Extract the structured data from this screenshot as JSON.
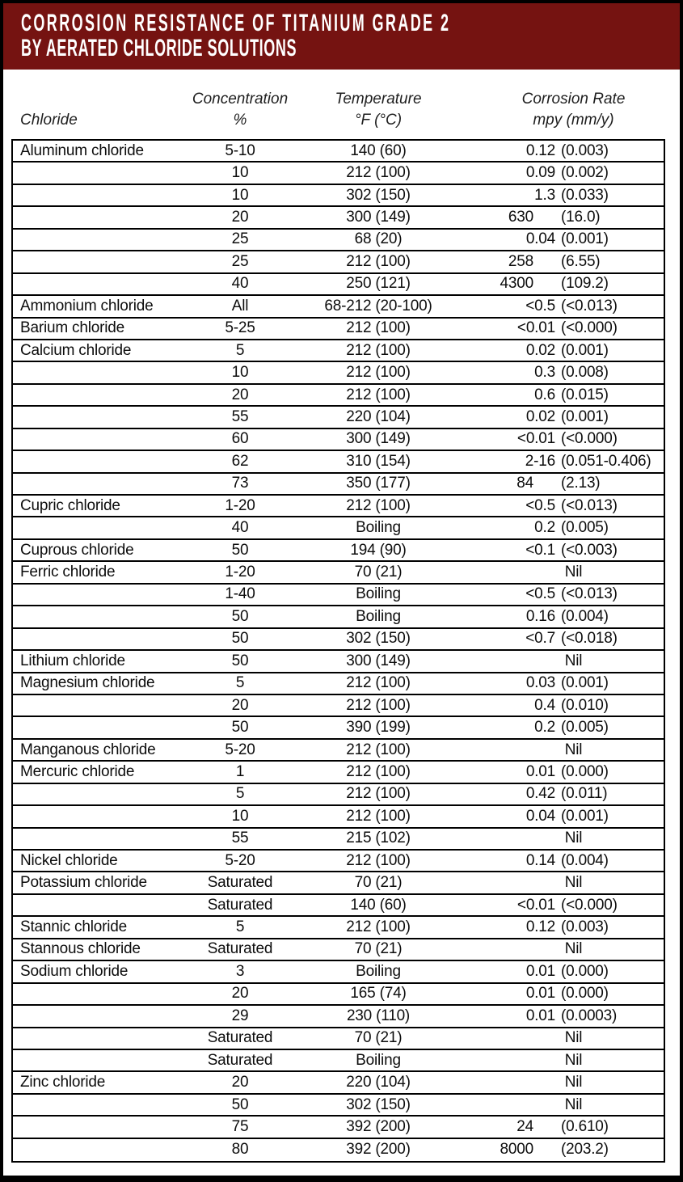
{
  "title": {
    "line1": "CORROSION RESISTANCE OF TITANIUM GRADE 2",
    "line2": "BY AERATED CHLORIDE SOLUTIONS"
  },
  "colors": {
    "banner_background": "#751311",
    "banner_text": "#ffffff",
    "table_border": "#000000",
    "body_text": "#0d0d0d"
  },
  "columns": {
    "chloride": {
      "line1": "",
      "line2": "Chloride"
    },
    "concentration": {
      "line1": "Concentration",
      "line2": "%"
    },
    "temperature": {
      "line1": "Temperature",
      "line2": "°F (°C)"
    },
    "corrosion": {
      "line1": "Corrosion Rate",
      "line2": "mpy (mm/y)"
    }
  },
  "rows": [
    {
      "chloride": "Aluminum chloride",
      "conc": "5-10",
      "temp": "140 (60)",
      "mpy": "0.12",
      "mmy": "(0.003)"
    },
    {
      "chloride": "",
      "conc": "10",
      "temp": "212 (100)",
      "mpy": "0.09",
      "mmy": "(0.002)"
    },
    {
      "chloride": "",
      "conc": "10",
      "temp": "302 (150)",
      "mpy": "1.3",
      "mmy": "(0.033)"
    },
    {
      "chloride": "",
      "conc": "20",
      "temp": "300 (149)",
      "mpy": "630",
      "mmy": "(16.0)"
    },
    {
      "chloride": "",
      "conc": "25",
      "temp": "68 (20)",
      "mpy": "0.04",
      "mmy": "(0.001)"
    },
    {
      "chloride": "",
      "conc": "25",
      "temp": "212 (100)",
      "mpy": "258",
      "mmy": "(6.55)"
    },
    {
      "chloride": "",
      "conc": "40",
      "temp": "250 (121)",
      "mpy": "4300",
      "mmy": "(109.2)"
    },
    {
      "chloride": "Ammonium chloride",
      "conc": "All",
      "temp": "68-212 (20-100)",
      "mpy": "<0.5",
      "mmy": "(<0.013)"
    },
    {
      "chloride": "Barium chloride",
      "conc": "5-25",
      "temp": "212 (100)",
      "mpy": "<0.01",
      "mmy": "(<0.000)"
    },
    {
      "chloride": "Calcium chloride",
      "conc": "5",
      "temp": "212 (100)",
      "mpy": "0.02",
      "mmy": "(0.001)"
    },
    {
      "chloride": "",
      "conc": "10",
      "temp": "212 (100)",
      "mpy": "0.3",
      "mmy": "(0.008)"
    },
    {
      "chloride": "",
      "conc": "20",
      "temp": "212 (100)",
      "mpy": "0.6",
      "mmy": "(0.015)"
    },
    {
      "chloride": "",
      "conc": "55",
      "temp": "220 (104)",
      "mpy": "0.02",
      "mmy": "(0.001)"
    },
    {
      "chloride": "",
      "conc": "60",
      "temp": "300 (149)",
      "mpy": "<0.01",
      "mmy": "(<0.000)"
    },
    {
      "chloride": "",
      "conc": "62",
      "temp": "310 (154)",
      "mpy": "2-16",
      "mmy": "(0.051-0.406)"
    },
    {
      "chloride": "",
      "conc": "73",
      "temp": "350 (177)",
      "mpy": "84",
      "mmy": "(2.13)"
    },
    {
      "chloride": "Cupric chloride",
      "conc": "1-20",
      "temp": "212 (100)",
      "mpy": "<0.5",
      "mmy": "(<0.013)"
    },
    {
      "chloride": "",
      "conc": "40",
      "temp": "Boiling",
      "mpy": "0.2",
      "mmy": "(0.005)"
    },
    {
      "chloride": "Cuprous chloride",
      "conc": "50",
      "temp": "194 (90)",
      "mpy": "<0.1",
      "mmy": "(<0.003)"
    },
    {
      "chloride": "Ferric chloride",
      "conc": "1-20",
      "temp": "70 (21)",
      "mpy": "Nil",
      "mmy": ""
    },
    {
      "chloride": "",
      "conc": "1-40",
      "temp": "Boiling",
      "mpy": "<0.5",
      "mmy": "(<0.013)"
    },
    {
      "chloride": "",
      "conc": "50",
      "temp": "Boiling",
      "mpy": "0.16",
      "mmy": "(0.004)"
    },
    {
      "chloride": "",
      "conc": "50",
      "temp": "302 (150)",
      "mpy": "<0.7",
      "mmy": "(<0.018)"
    },
    {
      "chloride": "Lithium chloride",
      "conc": "50",
      "temp": "300 (149)",
      "mpy": "Nil",
      "mmy": ""
    },
    {
      "chloride": "Magnesium chloride",
      "conc": "5",
      "temp": "212 (100)",
      "mpy": "0.03",
      "mmy": "(0.001)"
    },
    {
      "chloride": "",
      "conc": "20",
      "temp": "212 (100)",
      "mpy": "0.4",
      "mmy": "(0.010)"
    },
    {
      "chloride": "",
      "conc": "50",
      "temp": "390 (199)",
      "mpy": "0.2",
      "mmy": "(0.005)"
    },
    {
      "chloride": "Manganous chloride",
      "conc": "5-20",
      "temp": "212 (100)",
      "mpy": "Nil",
      "mmy": ""
    },
    {
      "chloride": "Mercuric chloride",
      "conc": "1",
      "temp": "212 (100)",
      "mpy": "0.01",
      "mmy": "(0.000)"
    },
    {
      "chloride": "",
      "conc": "5",
      "temp": "212 (100)",
      "mpy": "0.42",
      "mmy": "(0.011)"
    },
    {
      "chloride": "",
      "conc": "10",
      "temp": "212 (100)",
      "mpy": "0.04",
      "mmy": "(0.001)"
    },
    {
      "chloride": "",
      "conc": "55",
      "temp": "215 (102)",
      "mpy": "Nil",
      "mmy": ""
    },
    {
      "chloride": "Nickel chloride",
      "conc": "5-20",
      "temp": "212 (100)",
      "mpy": "0.14",
      "mmy": "(0.004)"
    },
    {
      "chloride": "Potassium chloride",
      "conc": "Saturated",
      "temp": "70 (21)",
      "mpy": "Nil",
      "mmy": ""
    },
    {
      "chloride": "",
      "conc": "Saturated",
      "temp": "140 (60)",
      "mpy": "<0.01",
      "mmy": "(<0.000)"
    },
    {
      "chloride": "Stannic chloride",
      "conc": "5",
      "temp": "212 (100)",
      "mpy": "0.12",
      "mmy": "(0.003)"
    },
    {
      "chloride": "Stannous chloride",
      "conc": "Saturated",
      "temp": "70 (21)",
      "mpy": "Nil",
      "mmy": ""
    },
    {
      "chloride": "Sodium chloride",
      "conc": "3",
      "temp": "Boiling",
      "mpy": "0.01",
      "mmy": "(0.000)"
    },
    {
      "chloride": "",
      "conc": "20",
      "temp": "165 (74)",
      "mpy": "0.01",
      "mmy": "(0.000)"
    },
    {
      "chloride": "",
      "conc": "29",
      "temp": "230 (110)",
      "mpy": "0.01",
      "mmy": "(0.0003)"
    },
    {
      "chloride": "",
      "conc": "Saturated",
      "temp": "70 (21)",
      "mpy": "Nil",
      "mmy": ""
    },
    {
      "chloride": "",
      "conc": "Saturated",
      "temp": "Boiling",
      "mpy": "Nil",
      "mmy": ""
    },
    {
      "chloride": "Zinc chloride",
      "conc": "20",
      "temp": "220 (104)",
      "mpy": "Nil",
      "mmy": ""
    },
    {
      "chloride": "",
      "conc": "50",
      "temp": "302 (150)",
      "mpy": "Nil",
      "mmy": ""
    },
    {
      "chloride": "",
      "conc": "75",
      "temp": "392 (200)",
      "mpy": "24",
      "mmy": "(0.610)"
    },
    {
      "chloride": "",
      "conc": "80",
      "temp": "392 (200)",
      "mpy": "8000",
      "mmy": "(203.2)"
    }
  ]
}
